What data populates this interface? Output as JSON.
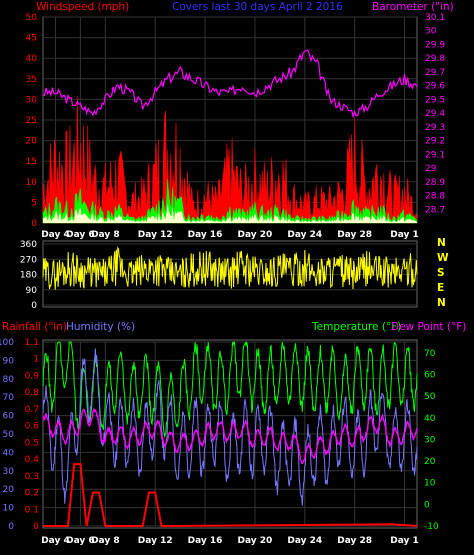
{
  "chart_data": [
    {
      "type": "line",
      "panel": "wind-barometer",
      "title": "Covers last 30 days April 2 2016",
      "ylabel_left": "Windspeed (mph)",
      "ylabel_right": "Barometer (\"in)",
      "ylim_left": [
        0,
        50
      ],
      "ylim_right": [
        28.6,
        30.1
      ],
      "yticks_left": [
        "0",
        "5",
        "10",
        "15",
        "20",
        "25",
        "30",
        "35",
        "40",
        "45",
        "50"
      ],
      "yticks_right": [
        "28.7",
        "28.8",
        "28.9",
        "29",
        "29.1",
        "29.2",
        "29.3",
        "29.4",
        "29.5",
        "29.6",
        "29.7",
        "29.8",
        "29.9",
        "30",
        "30.1"
      ],
      "xlim": [
        3,
        33
      ],
      "x_ticks": [
        "Day 4",
        "Day 6",
        "Day 8",
        "Day 12",
        "Day 16",
        "Day 20",
        "Day 24",
        "Day 28",
        "Day 1"
      ],
      "x_tick_days": [
        4,
        6,
        8,
        12,
        16,
        20,
        24,
        28,
        32
      ],
      "grid": true,
      "colors": {
        "gust": "#ff0000",
        "wind_avg": "#00ff00",
        "wind_min": "#ffffcc",
        "barometer": "#ff00ff"
      },
      "series": [
        {
          "name": "gust",
          "x": [
            3,
            4,
            5,
            6,
            7,
            8,
            9,
            10,
            11,
            12,
            13,
            14,
            15,
            16,
            17,
            18,
            19,
            20,
            21,
            22,
            23,
            24,
            25,
            26,
            27,
            28,
            29,
            30,
            31,
            32,
            33
          ],
          "values": [
            8,
            14,
            12,
            18,
            10,
            8,
            11,
            5,
            6,
            11,
            18,
            15,
            4,
            6,
            5,
            12,
            7,
            10,
            8,
            12,
            6,
            4,
            5,
            5,
            7,
            15,
            8,
            12,
            6,
            7,
            3
          ]
        },
        {
          "name": "wind_avg",
          "x": [
            3,
            4,
            5,
            6,
            7,
            8,
            9,
            10,
            11,
            12,
            13,
            14,
            15,
            16,
            17,
            18,
            19,
            20,
            21,
            22,
            23,
            24,
            25,
            26,
            27,
            28,
            29,
            30,
            31,
            32,
            33
          ],
          "values": [
            2,
            4,
            3,
            5,
            3,
            2,
            3,
            1,
            1,
            3,
            6,
            4,
            1,
            2,
            1,
            3,
            2,
            3,
            2,
            3,
            1,
            1,
            1,
            1,
            2,
            4,
            2,
            3,
            1,
            2,
            1
          ]
        },
        {
          "name": "barometer",
          "x": [
            3,
            4,
            5,
            6,
            7,
            8,
            9,
            10,
            11,
            12,
            13,
            14,
            15,
            16,
            17,
            18,
            19,
            20,
            21,
            22,
            23,
            24,
            25,
            26,
            27,
            28,
            29,
            30,
            31,
            32,
            33
          ],
          "values": [
            29.55,
            29.55,
            29.5,
            29.45,
            29.4,
            29.5,
            29.6,
            29.55,
            29.45,
            29.55,
            29.65,
            29.7,
            29.65,
            29.6,
            29.55,
            29.55,
            29.6,
            29.55,
            29.6,
            29.65,
            29.7,
            29.85,
            29.75,
            29.5,
            29.45,
            29.4,
            29.45,
            29.55,
            29.6,
            29.65,
            29.6
          ]
        }
      ]
    },
    {
      "type": "line",
      "panel": "wind-direction",
      "ylim": [
        0,
        360
      ],
      "yticks": [
        "0",
        "90",
        "180",
        "270",
        "360"
      ],
      "compass_labels": [
        "N",
        "W",
        "S",
        "E",
        "N"
      ],
      "colors": {
        "direction": "#ffff00"
      },
      "series": [
        {
          "name": "direction",
          "x": [
            3,
            4,
            5,
            6,
            7,
            8,
            9,
            10,
            11,
            12,
            13,
            14,
            15,
            16,
            17,
            18,
            19,
            20,
            21,
            22,
            23,
            24,
            25,
            26,
            27,
            28,
            29,
            30,
            31,
            32,
            33
          ],
          "values": [
            190,
            180,
            220,
            200,
            190,
            180,
            230,
            180,
            200,
            230,
            190,
            180,
            210,
            220,
            200,
            190,
            230,
            200,
            190,
            210,
            200,
            220,
            190,
            210,
            200,
            180,
            220,
            200,
            190,
            210,
            200
          ]
        }
      ]
    },
    {
      "type": "line",
      "panel": "rain-humidity-temperature",
      "ylabel_left_1": "Rainfall (\"in)",
      "ylabel_left_2": "Humidity (%)",
      "ylabel_right_1": "Temperature (°F)",
      "ylabel_right_2": "Dew Point (°F)",
      "ylim_humidity": [
        0,
        100
      ],
      "ylim_rain": [
        0,
        1.1
      ],
      "ylim_temp": [
        -10,
        75
      ],
      "yticks_humidity": [
        "0",
        "10",
        "20",
        "30",
        "40",
        "50",
        "60",
        "70",
        "80",
        "90",
        "100"
      ],
      "yticks_rain": [
        "0",
        "0.1",
        "0.2",
        "0.3",
        "0.4",
        "0.5",
        "0.6",
        "0.7",
        "0.8",
        "0.9",
        "1",
        "1.1"
      ],
      "yticks_temp": [
        "-10",
        "0",
        "10",
        "20",
        "30",
        "40",
        "50",
        "60",
        "70"
      ],
      "x_ticks": [
        "Day 4",
        "Day 6",
        "Day 8",
        "Day 12",
        "Day 16",
        "Day 20",
        "Day 24",
        "Day 28",
        "Day 1"
      ],
      "colors": {
        "rain": "#ff0000",
        "humidity": "#7777ff",
        "temperature": "#00ff00",
        "dew_point": "#ff00ff"
      },
      "series": [
        {
          "name": "rain",
          "x": [
            3,
            4,
            5,
            5.5,
            6,
            6.5,
            7,
            7.5,
            8,
            11,
            11.5,
            12,
            12.5,
            13,
            31,
            33
          ],
          "values": [
            0,
            0,
            0,
            0.37,
            0.37,
            0,
            0.2,
            0.2,
            0,
            0,
            0.2,
            0.2,
            0,
            0,
            0.01,
            0
          ]
        },
        {
          "name": "temperature",
          "x": [
            3,
            4,
            5,
            6,
            7,
            8,
            9,
            10,
            11,
            12,
            13,
            14,
            15,
            16,
            17,
            18,
            19,
            20,
            21,
            22,
            23,
            24,
            25,
            26,
            27,
            28,
            29,
            30,
            31,
            32,
            33
          ],
          "values": [
            55,
            60,
            68,
            45,
            55,
            48,
            60,
            50,
            55,
            52,
            44,
            50,
            58,
            62,
            55,
            60,
            65,
            58,
            55,
            60,
            62,
            58,
            55,
            60,
            52,
            58,
            60,
            55,
            62,
            58,
            60
          ]
        },
        {
          "name": "dew_point",
          "x": [
            3,
            4,
            5,
            6,
            7,
            8,
            9,
            10,
            11,
            12,
            13,
            14,
            15,
            16,
            17,
            18,
            19,
            20,
            21,
            22,
            23,
            24,
            25,
            26,
            27,
            28,
            29,
            30,
            31,
            32,
            33
          ],
          "values": [
            38,
            35,
            32,
            38,
            42,
            30,
            33,
            30,
            33,
            35,
            30,
            28,
            30,
            32,
            35,
            33,
            35,
            30,
            32,
            28,
            30,
            22,
            27,
            28,
            33,
            30,
            35,
            38,
            30,
            33,
            35
          ]
        },
        {
          "name": "humidity",
          "x": [
            3,
            4,
            5,
            6,
            7,
            8,
            9,
            10,
            11,
            12,
            13,
            14,
            15,
            16,
            17,
            18,
            19,
            20,
            21,
            22,
            23,
            24,
            25,
            26,
            27,
            28,
            29,
            30,
            31,
            32,
            33
          ],
          "values": [
            60,
            45,
            30,
            70,
            80,
            55,
            50,
            50,
            45,
            60,
            55,
            40,
            50,
            45,
            55,
            40,
            50,
            45,
            50,
            35,
            40,
            30,
            45,
            40,
            55,
            40,
            50,
            60,
            45,
            50,
            45
          ]
        }
      ]
    }
  ]
}
